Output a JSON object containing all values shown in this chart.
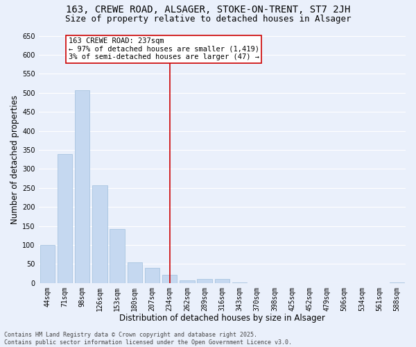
{
  "title1": "163, CREWE ROAD, ALSAGER, STOKE-ON-TRENT, ST7 2JH",
  "title2": "Size of property relative to detached houses in Alsager",
  "xlabel": "Distribution of detached houses by size in Alsager",
  "ylabel": "Number of detached properties",
  "categories": [
    "44sqm",
    "71sqm",
    "98sqm",
    "126sqm",
    "153sqm",
    "180sqm",
    "207sqm",
    "234sqm",
    "262sqm",
    "289sqm",
    "316sqm",
    "343sqm",
    "370sqm",
    "398sqm",
    "425sqm",
    "452sqm",
    "479sqm",
    "506sqm",
    "534sqm",
    "561sqm",
    "588sqm"
  ],
  "values": [
    100,
    338,
    507,
    257,
    141,
    55,
    40,
    22,
    6,
    10,
    10,
    2,
    0,
    0,
    0,
    0,
    0,
    0,
    0,
    0,
    2
  ],
  "bar_color": "#c5d8f0",
  "bar_edge_color": "#a8c4e0",
  "vline_x_index": 7,
  "vline_color": "#cc0000",
  "annotation_text": "163 CREWE ROAD: 237sqm\n← 97% of detached houses are smaller (1,419)\n3% of semi-detached houses are larger (47) →",
  "annotation_box_facecolor": "#ffffff",
  "annotation_box_edgecolor": "#cc0000",
  "ylim": [
    0,
    650
  ],
  "yticks": [
    0,
    50,
    100,
    150,
    200,
    250,
    300,
    350,
    400,
    450,
    500,
    550,
    600,
    650
  ],
  "footer_text": "Contains HM Land Registry data © Crown copyright and database right 2025.\nContains public sector information licensed under the Open Government Licence v3.0.",
  "bg_color": "#eaf0fb",
  "grid_color": "#ffffff",
  "title_fontsize": 10,
  "subtitle_fontsize": 9,
  "tick_fontsize": 7,
  "label_fontsize": 8.5,
  "footer_fontsize": 6,
  "annot_fontsize": 7.5
}
